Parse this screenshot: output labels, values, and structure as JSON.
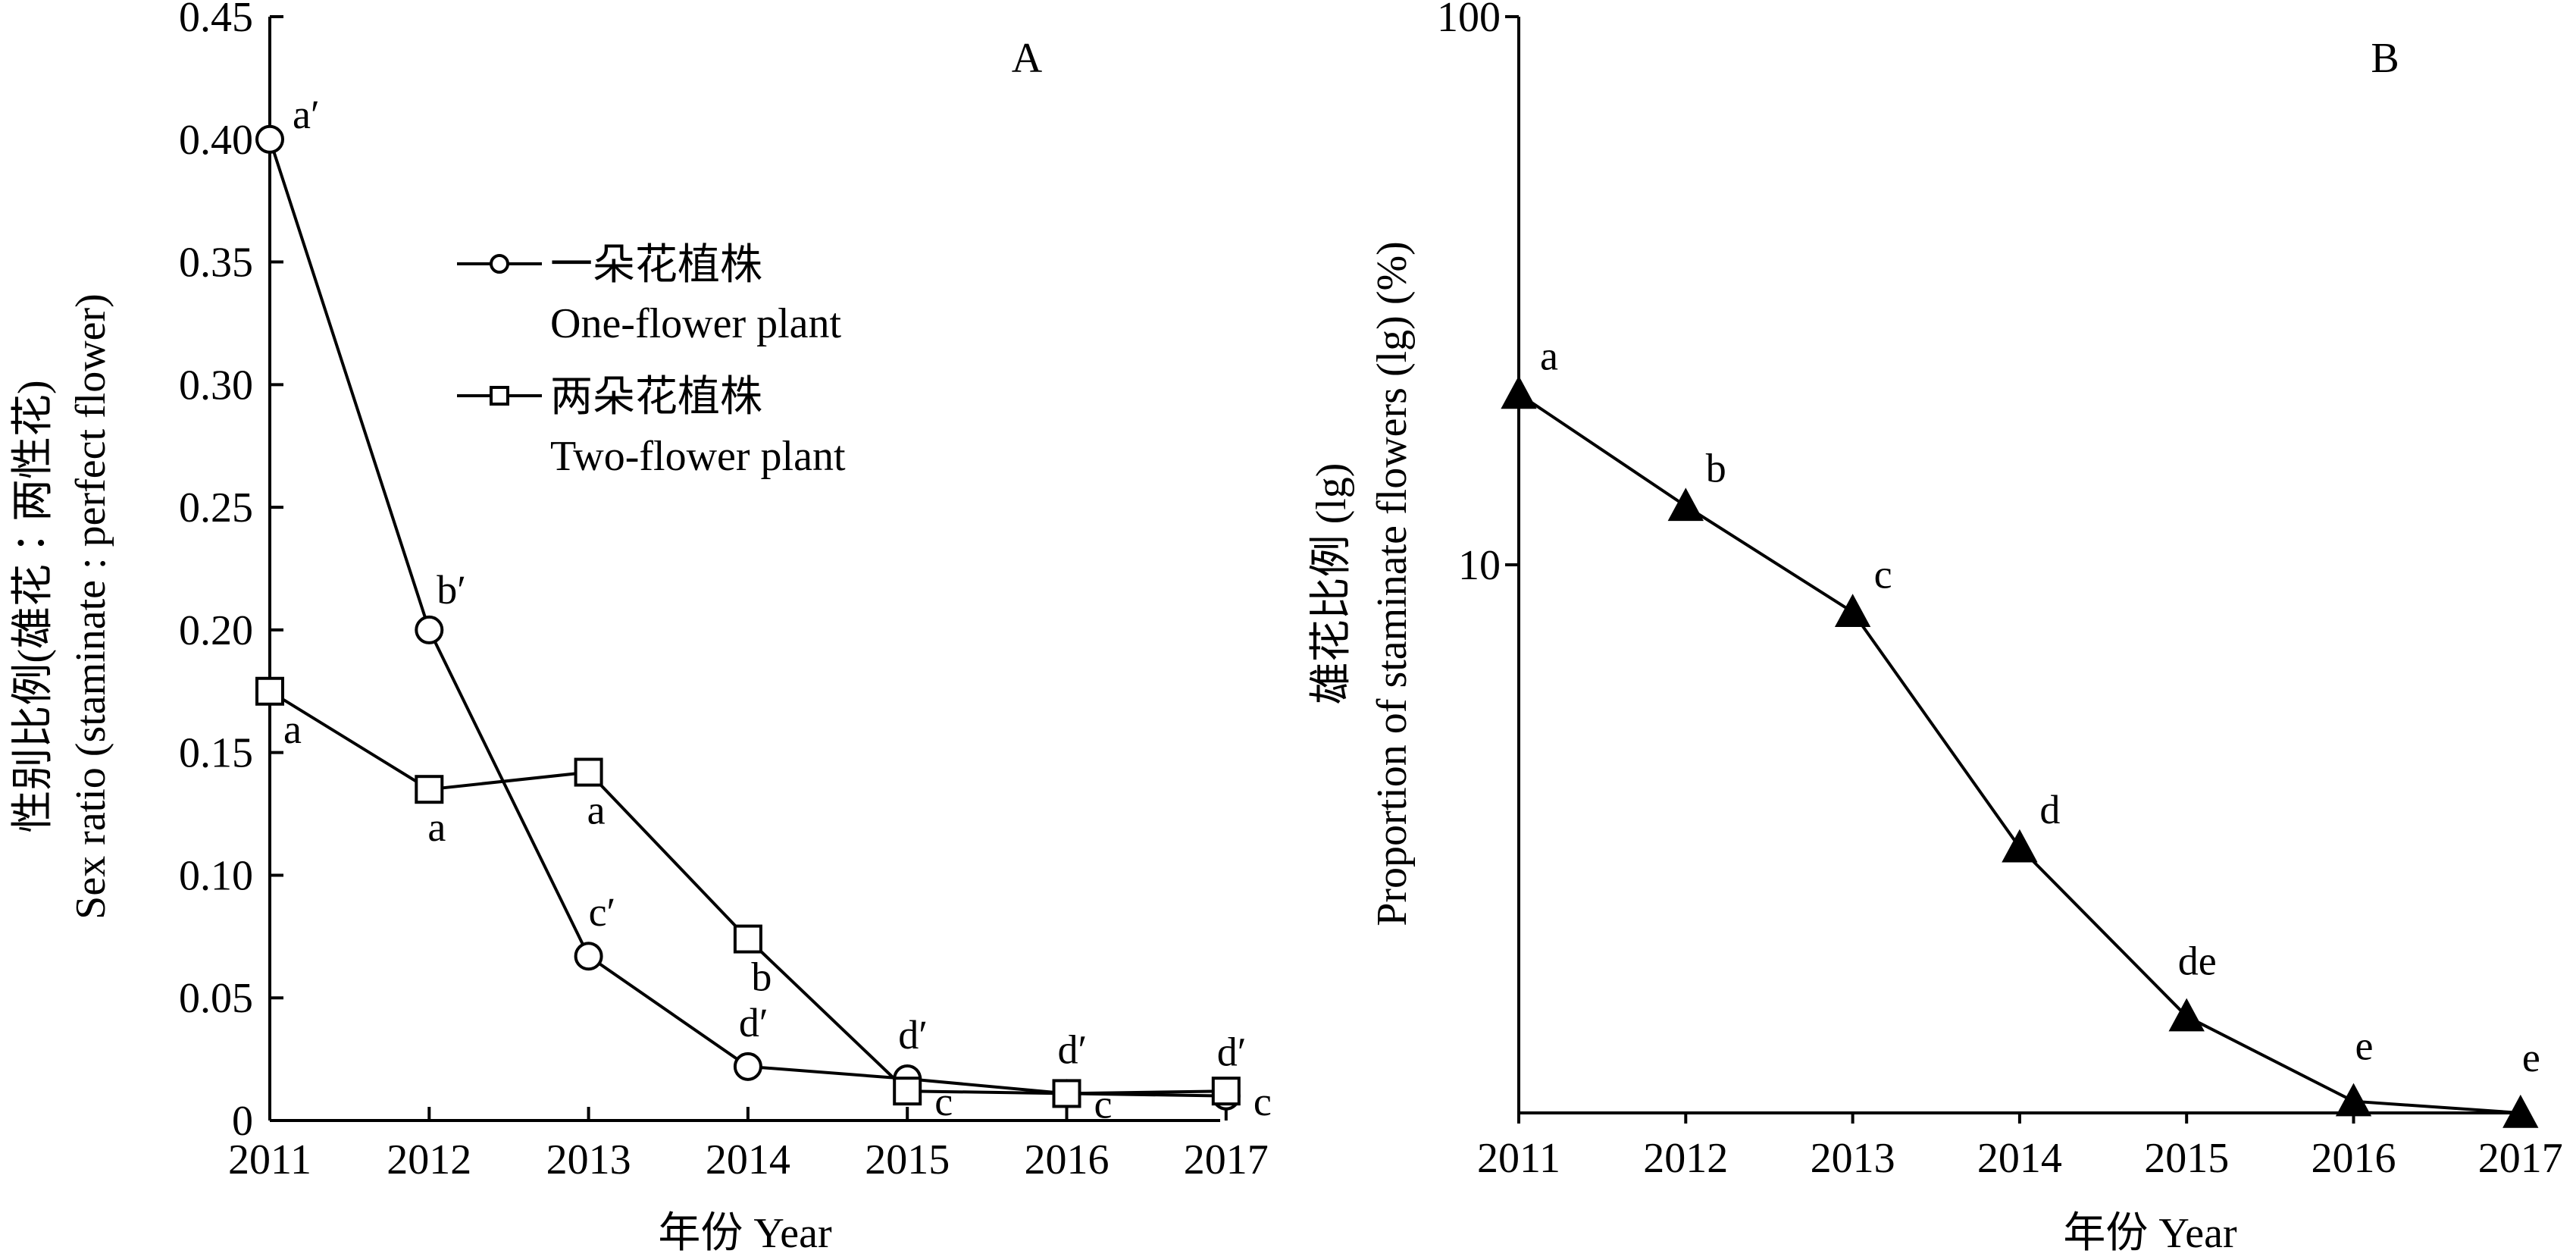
{
  "chart_data": [
    {
      "type": "line",
      "panel_label": "A",
      "xlabel": "年份 Year",
      "ylabel_cn": "性别比例(雄花∶两性花)",
      "ylabel_en": "Sex ratio (staminate : perfect flower)",
      "x": [
        "2011",
        "2012",
        "2013",
        "2014",
        "2015",
        "2016",
        "2017"
      ],
      "ylim": [
        0,
        0.45
      ],
      "yticks": [
        "0",
        "0.05",
        "0.10",
        "0.15",
        "0.20",
        "0.25",
        "0.30",
        "0.35",
        "0.40",
        "0.45"
      ],
      "legend_position": "top-center",
      "grid": false,
      "series": [
        {
          "name_cn": "一朵花植株",
          "name_en": "One-flower plant",
          "marker": "circle",
          "values": [
            0.4,
            0.2,
            0.067,
            0.022,
            0.017,
            0.011,
            0.01
          ],
          "labels": [
            "a′",
            "b′",
            "c′",
            "d′",
            "d′",
            "d′",
            "d′"
          ]
        },
        {
          "name_cn": "两朵花植株",
          "name_en": "Two-flower plant",
          "marker": "square",
          "values": [
            0.175,
            0.135,
            0.142,
            0.074,
            0.012,
            0.011,
            0.012
          ],
          "labels": [
            "a",
            "a",
            "a",
            "b",
            "c",
            "c",
            "c"
          ]
        }
      ]
    },
    {
      "type": "line",
      "panel_label": "B",
      "xlabel": "年份 Year",
      "ylabel_cn": "雄花比例 (lg)",
      "ylabel_en": "Proportion of staminate flowers (lg) (%)",
      "x": [
        "2011",
        "2012",
        "2013",
        "2014",
        "2015",
        "2016",
        "2017"
      ],
      "yscale": "log",
      "ylim": [
        1,
        100
      ],
      "yticks": [
        "10",
        "100"
      ],
      "grid": false,
      "series": [
        {
          "marker": "triangle",
          "values": [
            20.5,
            12.8,
            8.2,
            3.05,
            1.5,
            1.05,
            1.0
          ],
          "labels": [
            "a",
            "b",
            "c",
            "d",
            "de",
            "e",
            "e"
          ]
        }
      ]
    }
  ]
}
